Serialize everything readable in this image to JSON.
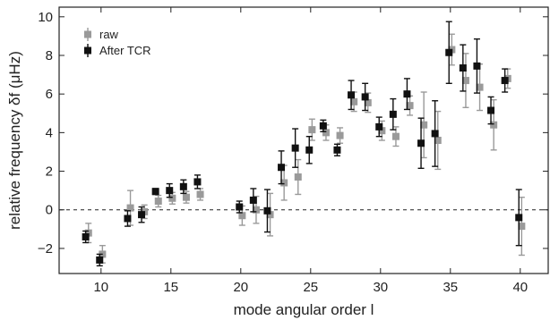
{
  "chart_data": {
    "type": "scatter",
    "xlabel": "mode angular order l",
    "ylabel": "relative frequency δf (μHz)",
    "xlim": [
      7,
      42
    ],
    "ylim": [
      -3.3,
      10.5
    ],
    "xticks": [
      "10",
      "15",
      "20",
      "25",
      "30",
      "35",
      "40"
    ],
    "yticks": [
      "−2",
      "0",
      "2",
      "4",
      "6",
      "8",
      "10"
    ],
    "reference_line": {
      "y": 0,
      "style": "dashed"
    },
    "grid": false,
    "legend_position": "top-left",
    "series": [
      {
        "name": "raw",
        "color": "#9a9a9a",
        "marker": "square",
        "points": [
          {
            "x": 9.1,
            "y": -1.2,
            "err": 0.5
          },
          {
            "x": 10.1,
            "y": -2.3,
            "err": 0.45
          },
          {
            "x": 12.1,
            "y": 0.1,
            "err": 0.9
          },
          {
            "x": 13.1,
            "y": -0.1,
            "err": 0.35
          },
          {
            "x": 14.1,
            "y": 0.45,
            "err": 0.3
          },
          {
            "x": 15.1,
            "y": 0.6,
            "err": 0.3
          },
          {
            "x": 16.1,
            "y": 0.65,
            "err": 0.3
          },
          {
            "x": 17.1,
            "y": 0.8,
            "err": 0.3
          },
          {
            "x": 20.1,
            "y": -0.3,
            "err": 0.5
          },
          {
            "x": 21.1,
            "y": 0.0,
            "err": 0.7
          },
          {
            "x": 22.1,
            "y": -0.25,
            "err": 1.1
          },
          {
            "x": 23.1,
            "y": 1.4,
            "err": 0.9
          },
          {
            "x": 24.1,
            "y": 1.7,
            "err": 0.9
          },
          {
            "x": 25.1,
            "y": 4.15,
            "err": 0.55
          },
          {
            "x": 26.1,
            "y": 4.0,
            "err": 0.4
          },
          {
            "x": 27.1,
            "y": 3.85,
            "err": 0.4
          },
          {
            "x": 28.1,
            "y": 5.6,
            "err": 0.5
          },
          {
            "x": 29.1,
            "y": 5.55,
            "err": 0.5
          },
          {
            "x": 30.1,
            "y": 4.1,
            "err": 0.5
          },
          {
            "x": 31.1,
            "y": 3.8,
            "err": 0.5
          },
          {
            "x": 32.1,
            "y": 5.4,
            "err": 0.5
          },
          {
            "x": 33.1,
            "y": 4.4,
            "err": 1.7
          },
          {
            "x": 34.1,
            "y": 3.6,
            "err": 1.5
          },
          {
            "x": 35.1,
            "y": 8.3,
            "err": 0.8
          },
          {
            "x": 36.1,
            "y": 6.7,
            "err": 1.4
          },
          {
            "x": 37.1,
            "y": 6.35,
            "err": 1.2
          },
          {
            "x": 38.1,
            "y": 4.4,
            "err": 1.3
          },
          {
            "x": 39.1,
            "y": 6.8,
            "err": 0.5
          },
          {
            "x": 40.1,
            "y": -0.85,
            "err": 1.5
          }
        ]
      },
      {
        "name": "After TCR",
        "color": "#111111",
        "marker": "square",
        "points": [
          {
            "x": 8.9,
            "y": -1.4,
            "err": 0.3
          },
          {
            "x": 9.9,
            "y": -2.6,
            "err": 0.3
          },
          {
            "x": 11.9,
            "y": -0.45,
            "err": 0.4
          },
          {
            "x": 12.9,
            "y": -0.25,
            "err": 0.4
          },
          {
            "x": 13.9,
            "y": 0.95,
            "err": 0.15
          },
          {
            "x": 14.9,
            "y": 1.0,
            "err": 0.35
          },
          {
            "x": 15.9,
            "y": 1.2,
            "err": 0.35
          },
          {
            "x": 16.9,
            "y": 1.45,
            "err": 0.35
          },
          {
            "x": 19.9,
            "y": 0.15,
            "err": 0.3
          },
          {
            "x": 20.9,
            "y": 0.5,
            "err": 0.6
          },
          {
            "x": 21.9,
            "y": -0.05,
            "err": 1.1
          },
          {
            "x": 22.9,
            "y": 2.2,
            "err": 0.85
          },
          {
            "x": 23.9,
            "y": 3.2,
            "err": 1.0
          },
          {
            "x": 24.9,
            "y": 3.1,
            "err": 0.7
          },
          {
            "x": 25.9,
            "y": 4.35,
            "err": 0.3
          },
          {
            "x": 26.9,
            "y": 3.1,
            "err": 0.3
          },
          {
            "x": 27.9,
            "y": 5.95,
            "err": 0.75
          },
          {
            "x": 28.9,
            "y": 5.85,
            "err": 0.7
          },
          {
            "x": 29.9,
            "y": 4.3,
            "err": 0.5
          },
          {
            "x": 30.9,
            "y": 4.95,
            "err": 0.8
          },
          {
            "x": 31.9,
            "y": 6.0,
            "err": 0.8
          },
          {
            "x": 32.9,
            "y": 3.45,
            "err": 1.3
          },
          {
            "x": 33.9,
            "y": 3.95,
            "err": 1.7
          },
          {
            "x": 34.9,
            "y": 8.15,
            "err": 1.6
          },
          {
            "x": 35.9,
            "y": 7.35,
            "err": 1.2
          },
          {
            "x": 36.9,
            "y": 7.45,
            "err": 1.4
          },
          {
            "x": 37.9,
            "y": 5.15,
            "err": 0.7
          },
          {
            "x": 38.9,
            "y": 6.7,
            "err": 0.6
          },
          {
            "x": 39.9,
            "y": -0.4,
            "err": 1.45
          }
        ]
      }
    ]
  }
}
